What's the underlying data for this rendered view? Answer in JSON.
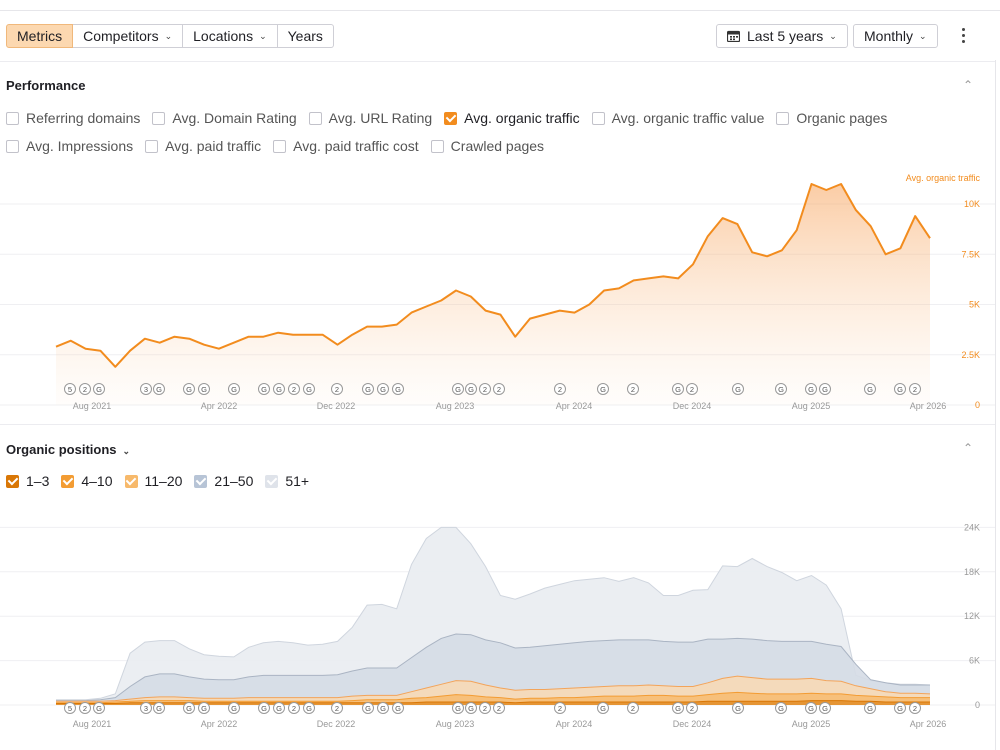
{
  "toolbar": {
    "tabs": [
      {
        "label": "Metrics",
        "active": true
      },
      {
        "label": "Competitors",
        "dropdown": true
      },
      {
        "label": "Locations",
        "dropdown": true
      },
      {
        "label": "Years"
      }
    ],
    "range_label": "Last 5 years",
    "interval_label": "Monthly"
  },
  "performance": {
    "title": "Performance",
    "checkboxes_row1": [
      {
        "label": "Referring domains",
        "checked": false
      },
      {
        "label": "Avg. Domain Rating",
        "checked": false
      },
      {
        "label": "Avg. URL Rating",
        "checked": false
      },
      {
        "label": "Avg. organic traffic",
        "checked": true
      },
      {
        "label": "Avg. organic traffic value",
        "checked": false
      },
      {
        "label": "Organic pages",
        "checked": false
      }
    ],
    "checkboxes_row2": [
      {
        "label": "Avg. Impressions",
        "checked": false
      },
      {
        "label": "Avg. paid traffic",
        "checked": false
      },
      {
        "label": "Avg. paid traffic cost",
        "checked": false
      },
      {
        "label": "Crawled pages",
        "checked": false
      }
    ]
  },
  "positions": {
    "title": "Organic positions",
    "checkboxes": [
      {
        "label": "1–3",
        "checked": true,
        "color": "#d97706"
      },
      {
        "label": "4–10",
        "checked": true,
        "color": "#f39c33"
      },
      {
        "label": "11–20",
        "checked": true,
        "color": "#f7b96b"
      },
      {
        "label": "21–50",
        "checked": true,
        "color": "#b7c4d6"
      },
      {
        "label": "51+",
        "checked": true,
        "color": "#dfe3ea"
      }
    ]
  },
  "colors": {
    "accent": "#f28c1e",
    "active_tab_bg": "#fcd8b0"
  },
  "chart_data": [
    {
      "type": "area",
      "series": [
        {
          "name": "Avg. organic traffic"
        }
      ],
      "x_tick_labels": [
        "Aug 2021",
        "Apr 2022",
        "Dec 2022",
        "Aug 2023",
        "Apr 2024",
        "Dec 2024",
        "Aug 2025",
        "Apr 2026"
      ],
      "y_tick_labels": [
        "0",
        "2.5K",
        "5K",
        "7.5K",
        "10K"
      ],
      "ylim": [
        0,
        10500
      ],
      "months_from": "2021-05",
      "values": [
        2900,
        3200,
        2800,
        2700,
        1900,
        2700,
        3300,
        3100,
        3400,
        3300,
        3000,
        2800,
        3100,
        3400,
        3400,
        3600,
        3500,
        3500,
        3500,
        3000,
        3500,
        3900,
        3900,
        4000,
        4600,
        4900,
        5200,
        5700,
        5400,
        4700,
        4500,
        3400,
        4300,
        4500,
        4700,
        4600,
        5000,
        5700,
        5800,
        6200,
        6300,
        6400,
        6300,
        7000,
        8400,
        9300,
        9000,
        7600,
        7400,
        7700,
        8700,
        11000,
        10700,
        11000,
        9700,
        8900,
        7500,
        7800,
        9400,
        8300
      ],
      "event_markers": [
        "5",
        "2",
        "G",
        "3",
        "G",
        "G",
        "G",
        "G",
        "G",
        "G",
        "2",
        "G",
        "2",
        "G",
        "G",
        "G",
        "G",
        "G",
        "2",
        "2",
        "2",
        "G",
        "2",
        "G",
        "2",
        "G",
        "G",
        "G",
        "G",
        "G",
        "G",
        "2"
      ]
    },
    {
      "type": "area",
      "series": [
        {
          "name": "1–3",
          "color": "#d97706"
        },
        {
          "name": "4–10",
          "color": "#f39c33"
        },
        {
          "name": "11–20",
          "color": "#f7b96b"
        },
        {
          "name": "21–50",
          "color": "#b7c4d6"
        },
        {
          "name": "51+",
          "color": "#dfe3ea"
        }
      ],
      "x_tick_labels": [
        "Aug 2021",
        "Apr 2022",
        "Dec 2022",
        "Aug 2023",
        "Apr 2024",
        "Dec 2024",
        "Aug 2025",
        "Apr 2026"
      ],
      "y_tick_labels": [
        "0",
        "6K",
        "12K",
        "18K",
        "24K"
      ],
      "ylim": [
        0,
        25000
      ]
    }
  ]
}
